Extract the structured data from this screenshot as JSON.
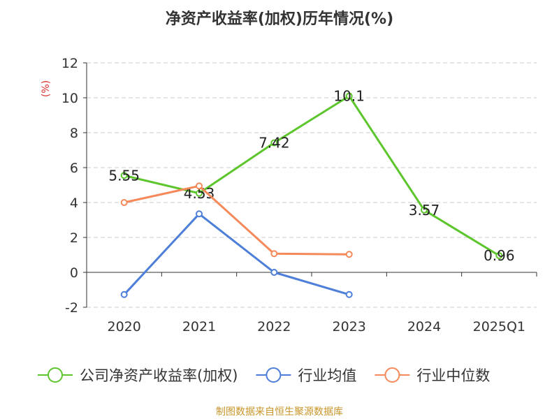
{
  "chart_data": {
    "type": "line",
    "title": "净资产收益率(加权)历年情况(%)",
    "ylabel": "(%)",
    "categories": [
      "2020",
      "2021",
      "2022",
      "2023",
      "2024",
      "2025Q1"
    ],
    "ylim": [
      -2,
      12
    ],
    "yticks": [
      -2,
      0,
      2,
      4,
      6,
      8,
      10,
      12
    ],
    "grid": true,
    "legend_position": "bottom",
    "series": [
      {
        "name": "公司净资产收益率(加权)",
        "color": "#5cc62c",
        "values": [
          5.55,
          4.53,
          7.42,
          10.1,
          3.57,
          0.96
        ],
        "labels": [
          "5.55",
          "4.53",
          "7.42",
          "10.1",
          "3.57",
          "0.96"
        ]
      },
      {
        "name": "行业均值",
        "color": "#4e7fd8",
        "values": [
          -1.27,
          3.35,
          0.0,
          -1.27,
          null,
          null
        ]
      },
      {
        "name": "行业中位数",
        "color": "#f5895a",
        "values": [
          4.0,
          4.95,
          1.07,
          1.03,
          null,
          null
        ]
      }
    ]
  },
  "footer": {
    "source": "制图数据来自恒生聚源数据库"
  }
}
